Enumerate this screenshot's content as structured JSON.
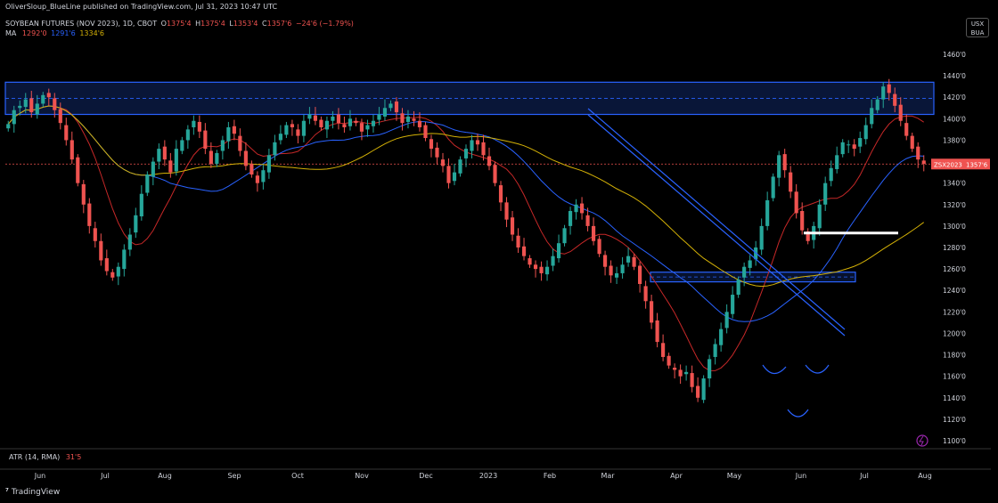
{
  "header": {
    "published": "OliverSloup_BlueLine published on TradingView.com, Jul 31, 2023 10:47 UTC",
    "symbol": "SOYBEAN FUTURES (NOV 2023), 1D, CBOT",
    "o_label": "O",
    "o_value": "1375'4",
    "h_label": "H",
    "h_value": "1375'4",
    "l_label": "L",
    "l_value": "1353'4",
    "c_label": "C",
    "c_value": "1357'6",
    "change": "−24'6 (−1.79%)"
  },
  "ma_legend": {
    "label": "MA",
    "v1": "1292'0",
    "v2": "1291'6",
    "v3": "1334'6"
  },
  "currency_box": {
    "line1": "USX",
    "line2": "BUA"
  },
  "price_tag": {
    "symbol": "ZSX2023",
    "value": "1357'6"
  },
  "atr": {
    "label": "ATR (14, RMA)",
    "value": "31'5"
  },
  "branding": {
    "name": "TradingView"
  },
  "colors": {
    "up": "#26a69a",
    "down": "#ef5350",
    "zone": "#2962ff",
    "ma_red": "#c62828",
    "ma_blue": "#2962ff",
    "ma_yellow": "#d4b106",
    "level": "#ffffff"
  },
  "chart_data": {
    "type": "candlestick",
    "title": "SOYBEAN FUTURES (NOV 2023), 1D, CBOT",
    "y_axis": {
      "ticks": [
        "1100'0",
        "1120'0",
        "1140'0",
        "1160'0",
        "1180'0",
        "1200'0",
        "1220'0",
        "1240'0",
        "1260'0",
        "1280'0",
        "1300'0",
        "1320'0",
        "1340'0",
        "1360'0",
        "1380'0",
        "1400'0",
        "1420'0",
        "1440'0",
        "1460'0"
      ],
      "range": [
        1096,
        1474
      ]
    },
    "x_axis": {
      "ticks": [
        "Jun",
        "Jul",
        "Aug",
        "Sep",
        "Oct",
        "Nov",
        "Dec",
        "2023",
        "Feb",
        "Mar",
        "Apr",
        "May",
        "Jun",
        "Jul",
        "Aug"
      ]
    },
    "last_price": 1357.75,
    "resistance_zone": [
      1404,
      1434
    ],
    "support_zone": [
      1248,
      1257
    ],
    "breakout_level": 1293.5,
    "closes": [
      1395,
      1408,
      1412,
      1418,
      1406,
      1414,
      1422,
      1420,
      1408,
      1396,
      1380,
      1362,
      1340,
      1320,
      1300,
      1286,
      1268,
      1258,
      1252,
      1262,
      1278,
      1292,
      1310,
      1330,
      1348,
      1360,
      1372,
      1362,
      1350,
      1372,
      1380,
      1390,
      1398,
      1388,
      1372,
      1358,
      1368,
      1380,
      1392,
      1386,
      1370,
      1356,
      1348,
      1340,
      1352,
      1366,
      1378,
      1386,
      1394,
      1392,
      1384,
      1398,
      1404,
      1398,
      1392,
      1398,
      1402,
      1396,
      1392,
      1400,
      1396,
      1388,
      1394,
      1398,
      1404,
      1410,
      1414,
      1406,
      1396,
      1402,
      1398,
      1392,
      1382,
      1372,
      1364,
      1356,
      1340,
      1350,
      1362,
      1372,
      1380,
      1376,
      1366,
      1356,
      1340,
      1322,
      1306,
      1292,
      1280,
      1272,
      1264,
      1260,
      1256,
      1262,
      1272,
      1284,
      1298,
      1314,
      1320,
      1312,
      1300,
      1286,
      1274,
      1262,
      1254,
      1256,
      1264,
      1272,
      1262,
      1246,
      1230,
      1210,
      1192,
      1178,
      1170,
      1166,
      1160,
      1164,
      1150,
      1140,
      1158,
      1176,
      1190,
      1204,
      1220,
      1236,
      1250,
      1262,
      1268,
      1280,
      1300,
      1324,
      1346,
      1366,
      1352,
      1332,
      1312,
      1296,
      1286,
      1300,
      1320,
      1340,
      1354,
      1366,
      1378,
      1376,
      1372,
      1382,
      1394,
      1410,
      1418,
      1430,
      1424,
      1412,
      1398,
      1384,
      1372,
      1362,
      1358
    ]
  }
}
